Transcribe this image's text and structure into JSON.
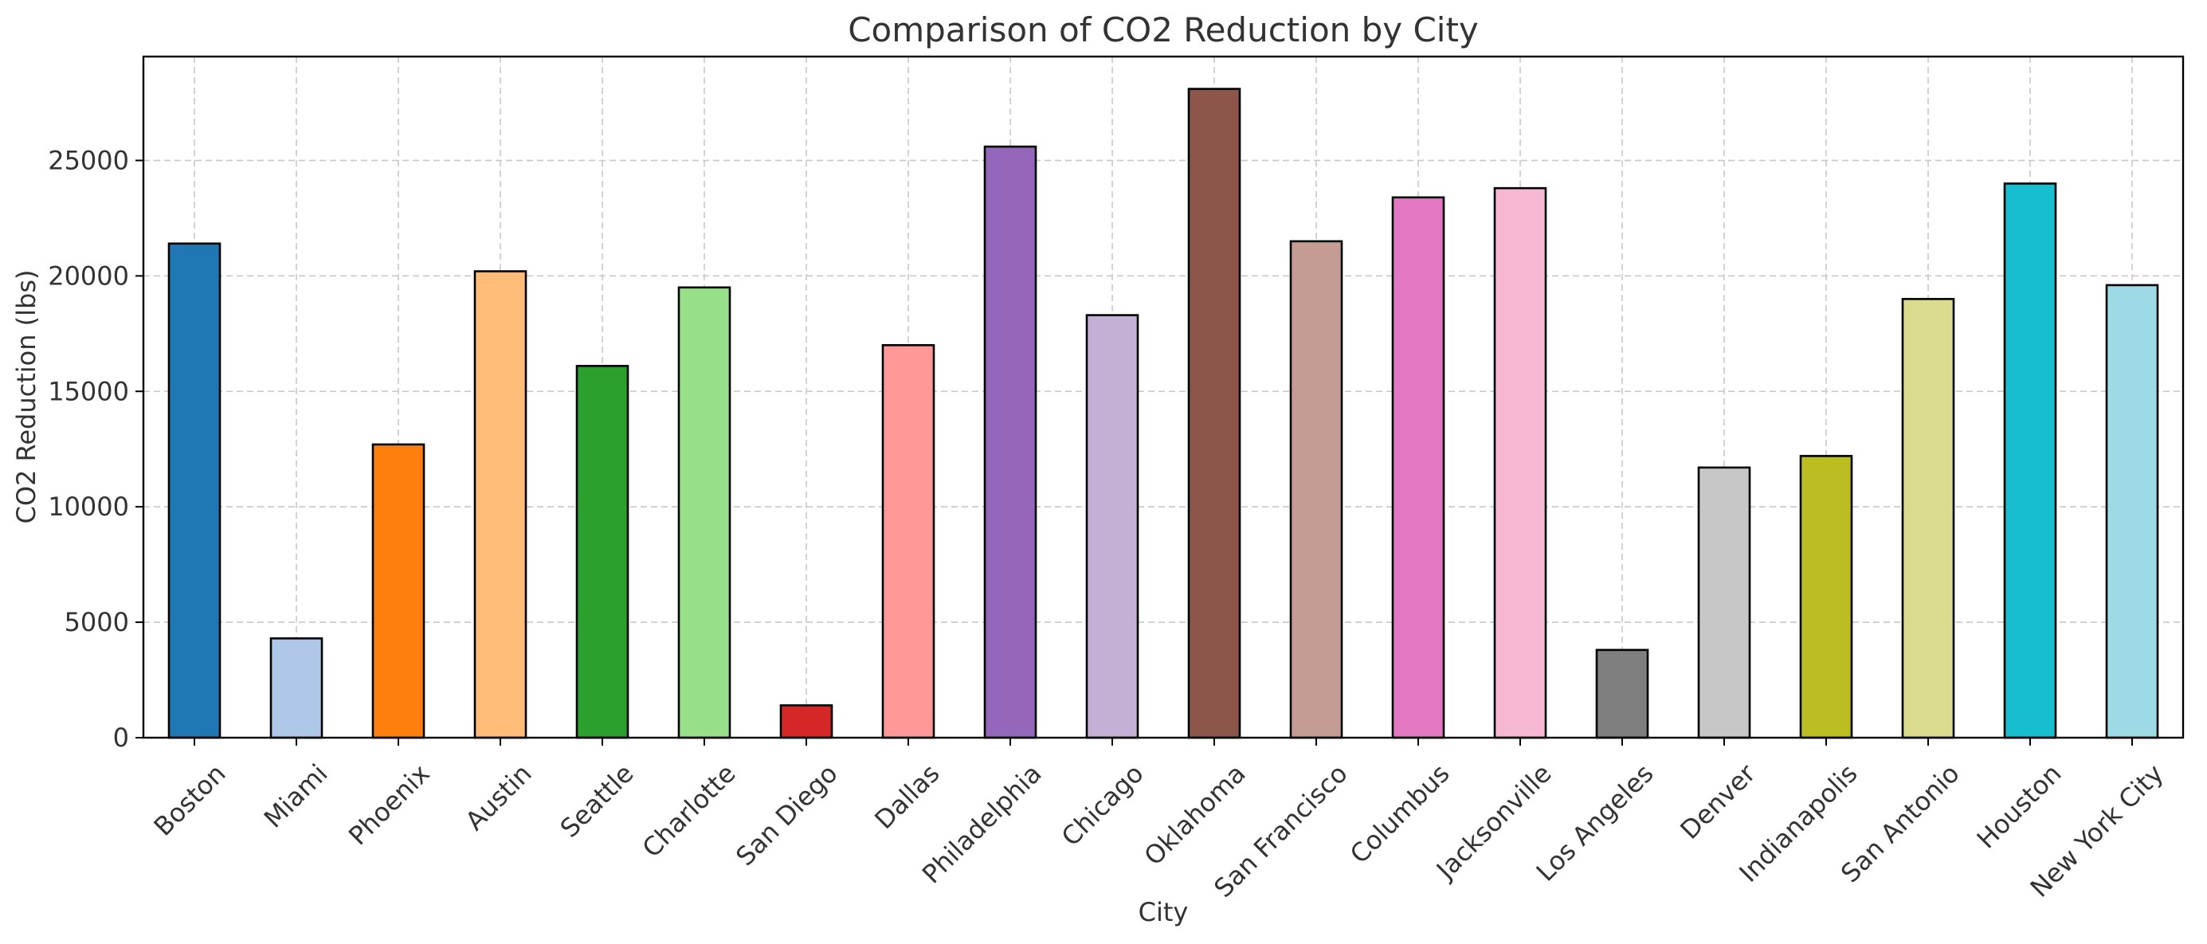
{
  "chart_data": {
    "type": "bar",
    "title": "Comparison of CO2 Reduction by City",
    "xlabel": "City",
    "ylabel": "CO2 Reduction (lbs)",
    "ylim": [
      0,
      29500
    ],
    "yticks": [
      0,
      5000,
      10000,
      15000,
      20000,
      25000
    ],
    "grid": true,
    "categories": [
      "Boston",
      "Miami",
      "Phoenix",
      "Austin",
      "Seattle",
      "Charlotte",
      "San Diego",
      "Dallas",
      "Philadelphia",
      "Chicago",
      "Oklahoma",
      "San Francisco",
      "Columbus",
      "Jacksonville",
      "Los Angeles",
      "Denver",
      "Indianapolis",
      "San Antonio",
      "Houston",
      "New York City"
    ],
    "values": [
      21400,
      4300,
      12700,
      20200,
      16100,
      19500,
      1400,
      17000,
      25600,
      18300,
      28100,
      21500,
      23400,
      23800,
      3800,
      11700,
      12200,
      19000,
      24000,
      19600
    ],
    "colors": [
      "#1f77b4",
      "#aec7e8",
      "#ff7f0e",
      "#ffbb78",
      "#2ca02c",
      "#98df8a",
      "#d62728",
      "#ff9896",
      "#9467bd",
      "#c5b0d5",
      "#8c564b",
      "#c49c94",
      "#e377c2",
      "#f7b6d2",
      "#7f7f7f",
      "#c7c7c7",
      "#bcbd22",
      "#dbdb8d",
      "#17becf",
      "#9edae5"
    ]
  }
}
